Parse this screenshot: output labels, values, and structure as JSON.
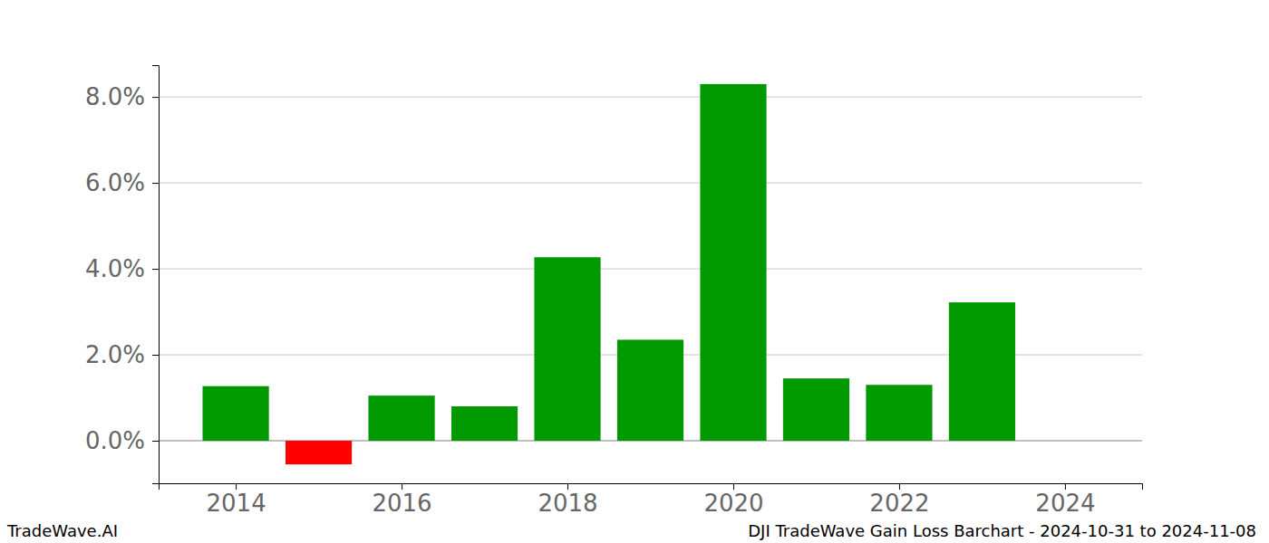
{
  "chart_data": {
    "type": "bar",
    "title": "DJI TradeWave Gain Loss Barchart - 2024-10-31 to 2024-11-08",
    "annotations": [
      "TradeWave.AI"
    ],
    "x": [
      2014,
      2015,
      2016,
      2017,
      2018,
      2019,
      2020,
      2021,
      2022,
      2023
    ],
    "values": [
      1.27,
      -0.55,
      1.05,
      0.8,
      4.27,
      2.35,
      8.3,
      1.45,
      1.3,
      3.22
    ],
    "colors": [
      "#009900",
      "#ff0000",
      "#009900",
      "#009900",
      "#009900",
      "#009900",
      "#009900",
      "#009900",
      "#009900",
      "#009900"
    ],
    "xlim": [
      2013.07,
      2024.93
    ],
    "xticks": [
      2014,
      2016,
      2018,
      2020,
      2022,
      2024
    ],
    "ylim": [
      -0.99,
      8.74
    ],
    "yticks": [
      {
        "value": 0,
        "label": "0.0%"
      },
      {
        "value": 2,
        "label": "2.0%"
      },
      {
        "value": 4,
        "label": "4.0%"
      },
      {
        "value": 6,
        "label": "6.0%"
      },
      {
        "value": 8,
        "label": "8.0%"
      }
    ],
    "grid": true
  }
}
